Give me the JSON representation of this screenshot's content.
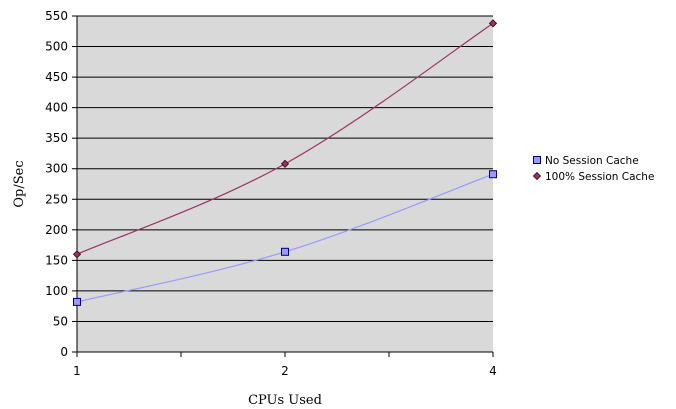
{
  "chart_data": {
    "type": "line",
    "title": "",
    "xlabel": "CPUs Used",
    "ylabel": "Op/Sec",
    "categories": [
      "1",
      "2",
      "4"
    ],
    "ylim": [
      0,
      550
    ],
    "yticks": [
      0,
      50,
      100,
      150,
      200,
      250,
      300,
      350,
      400,
      450,
      500,
      550
    ],
    "grid": true,
    "legend_position": "right",
    "plot_background": "#d9d9d9",
    "series": [
      {
        "name": "No Session Cache",
        "values": [
          82,
          164,
          291
        ],
        "color": "#9999ff",
        "marker": "square"
      },
      {
        "name": "100% Session Cache",
        "values": [
          160,
          308,
          538
        ],
        "color": "#993366",
        "marker": "diamond"
      }
    ]
  }
}
